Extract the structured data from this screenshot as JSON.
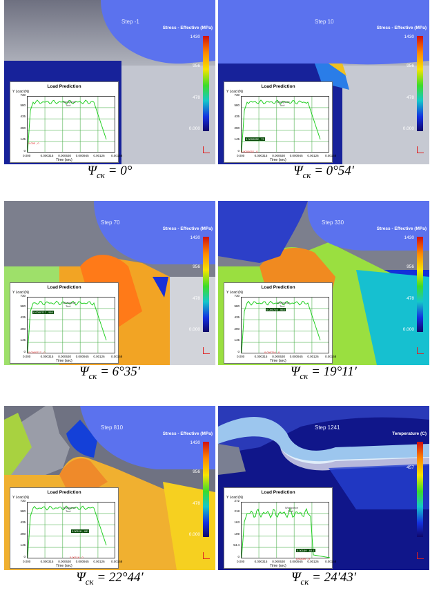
{
  "colormap": [
    "#d01010",
    "#ff8a00",
    "#f6e400",
    "#3ddc2a",
    "#14c8c8",
    "#1430e0",
    "#10086a"
  ],
  "panels": [
    {
      "step": "Step  -1",
      "legend_title": "Stress - Effective (MPa)",
      "ticks": [
        "1430",
        "956",
        "478",
        "0.000"
      ],
      "caption_sym": "Ψ",
      "caption_sub": "ск",
      "caption_val": " = 0°",
      "chart": {
        "title": "Load Prediction",
        "ylabel": "Y Load (N)",
        "ymax": "730",
        "yticks": [
          "580",
          "435",
          "290",
          "145",
          "0"
        ],
        "xticks": [
          "0.000",
          "0.000315",
          "0.000630",
          "0.000945",
          "0.00126",
          "0.00158"
        ],
        "xlabel": "Time (sec)",
        "legend": [
          "Workpiece",
          "Tool"
        ],
        "cursor": "0.000 , 0",
        "tag": ""
      }
    },
    {
      "step": "Step  10",
      "legend_title": "Stress - Effective (MPa)",
      "ticks": [
        "1430",
        "956",
        "478",
        "0.000"
      ],
      "caption_sym": "Ψ",
      "caption_sub": "ск",
      "caption_val": " = 0°54′",
      "chart": {
        "title": "Load Prediction",
        "ylabel": "Y Load (N)",
        "ymax": "730",
        "yticks": [
          "580",
          "435",
          "290",
          "145",
          "0"
        ],
        "xticks": [
          "0.000",
          "0.000315",
          "0.000630",
          "0.000945",
          "0.00126",
          "0.00158"
        ],
        "xlabel": "Time (sec)",
        "legend": [
          "Workpiece",
          "Tool"
        ],
        "cursor": "0.0000052 , 0",
        "tag": "0.0000052 , 79"
      }
    },
    {
      "step": "Step  70",
      "legend_title": "Stress - Effective (MPa)",
      "ticks": [
        "1430",
        "956",
        "478",
        "0.000"
      ],
      "caption_sym": "Ψ",
      "caption_sub": "ск",
      "caption_val": " = 6°35′",
      "chart": {
        "title": "Load Prediction",
        "ylabel": "Y Load (N)",
        "ymax": "730",
        "yticks": [
          "580",
          "435",
          "290",
          "145",
          "0"
        ],
        "xticks": [
          "0.000",
          "0.000315",
          "0.000630",
          "0.000945",
          "0.00126",
          "0.00158"
        ],
        "xlabel": "Time (sec)",
        "legend": [
          "Workpiece",
          "Tool"
        ],
        "cursor": "0.0000717 , 0",
        "tag": "0.0000717 , 560"
      }
    },
    {
      "step": "Step  330",
      "legend_title": "Stress - Effective (MPa)",
      "ticks": [
        "1430",
        "956",
        "478",
        "0.000"
      ],
      "caption_sym": "Ψ",
      "caption_sub": "ск",
      "caption_val": " = 19°11′",
      "chart": {
        "title": "Load Prediction",
        "ylabel": "Y Load (N)",
        "ymax": "730",
        "yticks": [
          "580",
          "435",
          "290",
          "145",
          "0"
        ],
        "xticks": [
          "0.000",
          "0.000315",
          "0.000630",
          "0.000945",
          "0.00126",
          "0.00158"
        ],
        "xlabel": "Time (sec)",
        "legend": [
          "Workpiece",
          "Tool"
        ],
        "cursor": "0.000716 , 0",
        "tag": "0.000716 , 563"
      }
    },
    {
      "step": "Step  810",
      "legend_title": "Stress - Effective (MPa)",
      "ticks": [
        "1430",
        "956",
        "478",
        "0.000"
      ],
      "caption_sym": "Ψ",
      "caption_sub": "ск",
      "caption_val": " = 22°44′",
      "chart": {
        "title": "Load Prediction",
        "ylabel": "Y Load (N)",
        "ymax": "730",
        "yticks": [
          "580",
          "435",
          "290",
          "145",
          "0"
        ],
        "xticks": [
          "0.000",
          "0.000315",
          "0.000630",
          "0.000945",
          "0.00126",
          "0.00158"
        ],
        "xlabel": "Time (sec)",
        "legend": [
          "Workpiece",
          "Tool"
        ],
        "cursor": "0.00116 , 0",
        "tag": "0.00116 , 481"
      }
    },
    {
      "step": "Step  1241",
      "legend_title": "Temperature (C)",
      "ticks": [
        "457",
        "",
        "",
        ""
      ],
      "caption_sym": "Ψ",
      "caption_sub": "ск",
      "caption_val": " = 24′43′",
      "chart": {
        "title": "Load Prediction",
        "ylabel": "Y Load (N)",
        "ymax": "272",
        "yticks": [
          "218",
          "163",
          "109",
          "54.4",
          "0"
        ],
        "xticks": [
          "0.000",
          "0.000315",
          "0.000630",
          "0.000945",
          "0.00126",
          "0.00158"
        ],
        "xlabel": "Time (sec)",
        "legend": [
          "Workpiece",
          "Tool"
        ],
        "cursor": "0.00159 , 0",
        "tag": "0.00159 , 65.1"
      }
    }
  ]
}
